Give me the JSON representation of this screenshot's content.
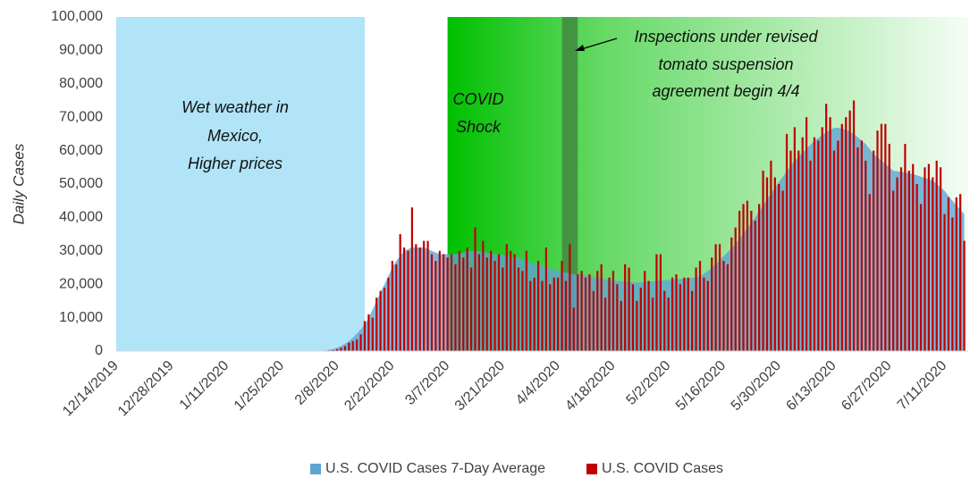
{
  "chart_data": {
    "type": "bar_area",
    "y_label": "Daily Cases",
    "xlim": [
      "12/14/2019",
      "7/17/2020"
    ],
    "xticks": [
      "12/14/2019",
      "12/28/2019",
      "1/11/2020",
      "1/25/2020",
      "2/8/2020",
      "2/22/2020",
      "3/7/2020",
      "3/21/2020",
      "4/4/2020",
      "4/18/2020",
      "5/2/2020",
      "5/16/2020",
      "5/30/2020",
      "6/13/2020",
      "6/27/2020",
      "7/11/2020"
    ],
    "ylim": [
      0,
      100000
    ],
    "yticks": [
      {
        "value": 0,
        "label": "0"
      },
      {
        "value": 10000,
        "label": "10,000"
      },
      {
        "value": 20000,
        "label": "20,000"
      },
      {
        "value": 30000,
        "label": "30,000"
      },
      {
        "value": 40000,
        "label": "40,000"
      },
      {
        "value": 50000,
        "label": "50,000"
      },
      {
        "value": 60000,
        "label": "60,000"
      },
      {
        "value": 70000,
        "label": "70,000"
      },
      {
        "value": 80000,
        "label": "80,000"
      },
      {
        "value": 90000,
        "label": "90,000"
      },
      {
        "value": 100000,
        "label": "100,000"
      }
    ],
    "shaded_regions": [
      {
        "start": "12/14/2019",
        "end": "2/15/2020",
        "color": "#b0e4f6",
        "label_lines": [
          "Wet weather in",
          "Mexico,",
          "Higher prices"
        ]
      },
      {
        "start": "3/7/2020",
        "end": "7/17/2020",
        "color": "#00c000",
        "label_lines": [
          "COVID",
          "Shock"
        ]
      },
      {
        "start": "4/5/2020",
        "end": "4/9/2020",
        "color": "#3f7f3f",
        "label_lines": [
          "Inspections under revised",
          "tomato suspension",
          "agreement begin 4/4"
        ]
      }
    ],
    "x": [
      "2/1/2020",
      "2/2/2020",
      "2/3/2020",
      "2/4/2020",
      "2/5/2020",
      "2/6/2020",
      "2/7/2020",
      "2/8/2020",
      "2/9/2020",
      "2/10/2020",
      "2/11/2020",
      "2/12/2020",
      "2/13/2020",
      "2/14/2020",
      "2/15/2020",
      "2/16/2020",
      "2/17/2020",
      "2/18/2020",
      "2/19/2020",
      "2/20/2020",
      "2/21/2020",
      "2/22/2020",
      "2/23/2020",
      "2/24/2020",
      "2/25/2020",
      "2/26/2020",
      "2/27/2020",
      "2/28/2020",
      "2/29/2020",
      "3/1/2020",
      "3/2/2020",
      "3/3/2020",
      "3/4/2020",
      "3/5/2020",
      "3/6/2020",
      "3/7/2020",
      "3/8/2020",
      "3/9/2020",
      "3/10/2020",
      "3/11/2020",
      "3/12/2020",
      "3/13/2020",
      "3/14/2020",
      "3/15/2020",
      "3/16/2020",
      "3/17/2020",
      "3/18/2020",
      "3/19/2020",
      "3/20/2020",
      "3/21/2020",
      "3/22/2020",
      "3/23/2020",
      "3/24/2020",
      "3/25/2020",
      "3/26/2020",
      "3/27/2020",
      "3/28/2020",
      "3/29/2020",
      "3/30/2020",
      "3/31/2020",
      "4/1/2020",
      "4/2/2020",
      "4/3/2020",
      "4/4/2020",
      "4/5/2020",
      "4/6/2020",
      "4/7/2020",
      "4/8/2020",
      "4/9/2020",
      "4/10/2020",
      "4/11/2020",
      "4/12/2020",
      "4/13/2020",
      "4/14/2020",
      "4/15/2020",
      "4/16/2020",
      "4/17/2020",
      "4/18/2020",
      "4/19/2020",
      "4/20/2020",
      "4/21/2020",
      "4/22/2020",
      "4/23/2020",
      "4/24/2020",
      "4/25/2020",
      "4/26/2020",
      "4/27/2020",
      "4/28/2020",
      "4/29/2020",
      "4/30/2020",
      "5/1/2020",
      "5/2/2020",
      "5/3/2020",
      "5/4/2020",
      "5/5/2020",
      "5/6/2020",
      "5/7/2020",
      "5/8/2020",
      "5/9/2020",
      "5/10/2020",
      "5/11/2020",
      "5/12/2020",
      "5/13/2020",
      "5/14/2020",
      "5/15/2020",
      "5/16/2020",
      "5/17/2020",
      "5/18/2020",
      "5/19/2020",
      "5/20/2020",
      "5/21/2020",
      "5/22/2020",
      "5/23/2020",
      "5/24/2020",
      "5/25/2020",
      "5/26/2020",
      "5/27/2020",
      "5/28/2020",
      "5/29/2020",
      "5/30/2020",
      "5/31/2020",
      "6/1/2020",
      "6/2/2020",
      "6/3/2020",
      "6/4/2020",
      "6/5/2020",
      "6/6/2020",
      "6/7/2020",
      "6/8/2020",
      "6/9/2020",
      "6/10/2020",
      "6/11/2020",
      "6/12/2020",
      "6/13/2020",
      "6/14/2020",
      "6/15/2020",
      "6/16/2020",
      "6/17/2020",
      "6/18/2020",
      "6/19/2020",
      "6/20/2020",
      "6/21/2020",
      "6/22/2020",
      "6/23/2020",
      "6/24/2020",
      "6/25/2020",
      "6/26/2020",
      "6/27/2020",
      "6/28/2020",
      "6/29/2020",
      "6/30/2020",
      "7/1/2020",
      "7/2/2020",
      "7/3/2020",
      "7/4/2020",
      "7/5/2020",
      "7/6/2020",
      "7/7/2020",
      "7/8/2020",
      "7/9/2020",
      "7/10/2020",
      "7/11/2020",
      "7/12/2020",
      "7/13/2020",
      "7/14/2020",
      "7/15/2020",
      "7/16/2020"
    ],
    "series": [
      {
        "name": "U.S. COVID Cases 7-Day Average",
        "color": "#5fa3d3",
        "kind": "area",
        "values": [
          0,
          0,
          0,
          100,
          200,
          400,
          600,
          1000,
          1500,
          2200,
          3000,
          4000,
          5200,
          6500,
          8000,
          10000,
          12500,
          15000,
          17500,
          20000,
          22500,
          25000,
          27000,
          28500,
          30000,
          30500,
          31000,
          31000,
          31000,
          31000,
          30500,
          30000,
          29500,
          29000,
          29000,
          29000,
          29000,
          29000,
          29000,
          29500,
          30000,
          30000,
          30000,
          30000,
          29800,
          29500,
          29300,
          29000,
          29000,
          28800,
          28500,
          28300,
          28000,
          28000,
          27500,
          27000,
          26500,
          26200,
          26000,
          25500,
          25000,
          24800,
          24500,
          24000,
          23800,
          23500,
          23300,
          23000,
          23000,
          22800,
          22600,
          22400,
          22200,
          22000,
          21800,
          21500,
          21300,
          21100,
          21000,
          20900,
          20800,
          20700,
          20600,
          20500,
          20600,
          20700,
          20800,
          20900,
          21000,
          21100,
          21200,
          21300,
          21400,
          21500,
          21600,
          21700,
          21800,
          21900,
          22000,
          22500,
          23200,
          24000,
          25000,
          26000,
          27200,
          28400,
          29600,
          30800,
          32000,
          33600,
          35200,
          36800,
          38400,
          40000,
          41800,
          43600,
          45400,
          47200,
          49000,
          50600,
          52200,
          53800,
          55400,
          57000,
          58200,
          59400,
          60600,
          61800,
          63000,
          63800,
          64600,
          65400,
          66200,
          66800,
          66800,
          66600,
          66200,
          65600,
          65000,
          64000,
          63000,
          62000,
          60500,
          59000,
          58000,
          57000,
          56000,
          55000,
          54000,
          53800,
          53600,
          53400,
          53200,
          53000,
          52600,
          52200,
          51800,
          51400,
          51000,
          50000,
          49000,
          48000,
          46500,
          45000,
          43600,
          42300,
          41000
        ]
      },
      {
        "name": "U.S. COVID Cases",
        "color": "#c00000",
        "kind": "bar",
        "values": [
          0,
          0,
          0,
          0,
          0,
          200,
          300,
          600,
          1000,
          1500,
          2500,
          3000,
          3500,
          5000,
          9000,
          11000,
          10000,
          16000,
          18000,
          19000,
          22000,
          27000,
          26000,
          35000,
          31000,
          30000,
          43000,
          32000,
          31000,
          33000,
          33000,
          29000,
          27000,
          30000,
          29000,
          28000,
          29000,
          26000,
          30000,
          28000,
          31000,
          25000,
          37000,
          29000,
          33000,
          28000,
          30000,
          27000,
          29000,
          25000,
          32000,
          30000,
          29000,
          25000,
          24000,
          30000,
          21000,
          22000,
          27000,
          21000,
          31000,
          20000,
          22000,
          22000,
          27000,
          21000,
          32000,
          13000,
          23000,
          24000,
          22000,
          23000,
          18000,
          24000,
          26000,
          16000,
          22000,
          24000,
          20000,
          15000,
          26000,
          25000,
          20000,
          15000,
          19000,
          24000,
          21000,
          16000,
          29000,
          29000,
          18000,
          16000,
          22000,
          23000,
          20000,
          22000,
          22000,
          18000,
          25000,
          27000,
          22000,
          21000,
          28000,
          32000,
          32000,
          27000,
          26000,
          34000,
          37000,
          42000,
          44000,
          45000,
          42000,
          39000,
          44000,
          54000,
          52000,
          57000,
          52000,
          50000,
          48000,
          65000,
          60000,
          67000,
          60000,
          64000,
          70000,
          57000,
          64000,
          63000,
          67000,
          74000,
          70000,
          60000,
          63000,
          68000,
          70000,
          72000,
          75000,
          61000,
          63000,
          57000,
          47000,
          60000,
          66000,
          68000,
          68000,
          62000,
          48000,
          52000,
          55000,
          62000,
          54000,
          56000,
          50000,
          44000,
          55000,
          56000,
          52000,
          57000,
          55000,
          41000,
          46000,
          40000,
          46000,
          47000,
          33000
        ]
      }
    ]
  }
}
